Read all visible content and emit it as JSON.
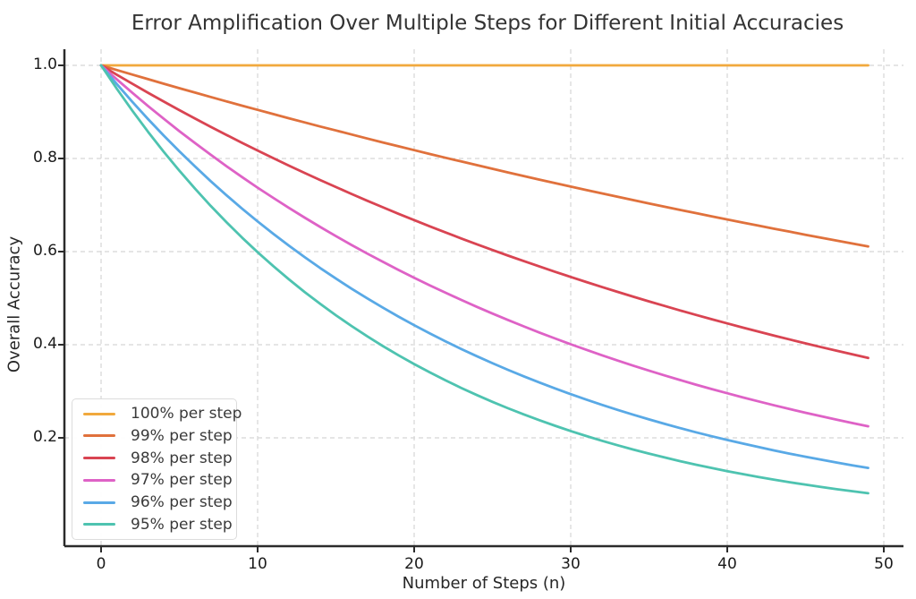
{
  "chart_data": {
    "type": "line",
    "title": "Error Amplification Over Multiple Steps for Different Initial Accuracies",
    "xlabel": "Number of Steps (n)",
    "ylabel": "Overall Accuracy",
    "xlim": [
      -2.34,
      51.26
    ],
    "ylim": [
      -0.033,
      1.035
    ],
    "grid": "dashed",
    "legend_position": "lower-left",
    "x_ticks": [
      0,
      10,
      20,
      30,
      40,
      50
    ],
    "x_tick_labels": [
      "0",
      "10",
      "20",
      "30",
      "40",
      "50"
    ],
    "y_ticks": [
      0.2,
      0.4,
      0.6,
      0.8,
      1.0
    ],
    "y_tick_labels": [
      "0.2",
      "0.4",
      "0.6",
      "0.8",
      "1.0"
    ],
    "x": [
      0,
      1,
      2,
      3,
      4,
      5,
      6,
      7,
      8,
      9,
      10,
      11,
      12,
      13,
      14,
      15,
      16,
      17,
      18,
      19,
      20,
      21,
      22,
      23,
      24,
      25,
      26,
      27,
      28,
      29,
      30,
      31,
      32,
      33,
      34,
      35,
      36,
      37,
      38,
      39,
      40,
      41,
      42,
      43,
      44,
      45,
      46,
      47,
      48,
      49
    ],
    "series": [
      {
        "name": "100% per step",
        "accuracy_per_step": 1.0,
        "color": "#F1A93D",
        "values": [
          1.0,
          1.0,
          1.0,
          1.0,
          1.0,
          1.0,
          1.0,
          1.0,
          1.0,
          1.0,
          1.0,
          1.0,
          1.0,
          1.0,
          1.0,
          1.0,
          1.0,
          1.0,
          1.0,
          1.0,
          1.0,
          1.0,
          1.0,
          1.0,
          1.0,
          1.0,
          1.0,
          1.0,
          1.0,
          1.0,
          1.0,
          1.0,
          1.0,
          1.0,
          1.0,
          1.0,
          1.0,
          1.0,
          1.0,
          1.0,
          1.0,
          1.0,
          1.0,
          1.0,
          1.0,
          1.0,
          1.0,
          1.0,
          1.0,
          1.0
        ]
      },
      {
        "name": "99% per step",
        "accuracy_per_step": 0.99,
        "color": "#E0713C",
        "values": [
          1.0,
          0.99,
          0.9801,
          0.9703,
          0.9606,
          0.951,
          0.9415,
          0.9321,
          0.9227,
          0.9135,
          0.9044,
          0.8953,
          0.8864,
          0.8775,
          0.8687,
          0.8601,
          0.8515,
          0.8429,
          0.8345,
          0.8262,
          0.8179,
          0.8097,
          0.8016,
          0.7936,
          0.7857,
          0.7778,
          0.77,
          0.7623,
          0.7547,
          0.7472,
          0.7397,
          0.7323,
          0.725,
          0.7177,
          0.7106,
          0.7034,
          0.6964,
          0.6894,
          0.6826,
          0.6757,
          0.669,
          0.6623,
          0.6557,
          0.6491,
          0.6426,
          0.6362,
          0.6298,
          0.6235,
          0.6173,
          0.6111
        ]
      },
      {
        "name": "98% per step",
        "accuracy_per_step": 0.98,
        "color": "#D94452",
        "values": [
          1.0,
          0.98,
          0.9604,
          0.9412,
          0.9224,
          0.9039,
          0.8858,
          0.8681,
          0.8508,
          0.8337,
          0.8171,
          0.8007,
          0.7847,
          0.769,
          0.7536,
          0.7386,
          0.7238,
          0.7093,
          0.6951,
          0.6812,
          0.6676,
          0.6543,
          0.6412,
          0.6283,
          0.6158,
          0.6035,
          0.5914,
          0.5796,
          0.568,
          0.5566,
          0.5455,
          0.5346,
          0.5239,
          0.5134,
          0.5031,
          0.4931,
          0.4832,
          0.4735,
          0.4641,
          0.4548,
          0.4457,
          0.4368,
          0.4281,
          0.4195,
          0.4111,
          0.4029,
          0.3948,
          0.3869,
          0.3792,
          0.3716
        ]
      },
      {
        "name": "97% per step",
        "accuracy_per_step": 0.97,
        "color": "#DE62C6",
        "values": [
          1.0,
          0.97,
          0.9409,
          0.9127,
          0.8853,
          0.8587,
          0.833,
          0.808,
          0.7837,
          0.7602,
          0.7374,
          0.7153,
          0.6938,
          0.673,
          0.6528,
          0.6333,
          0.6143,
          0.5958,
          0.578,
          0.5606,
          0.5438,
          0.5275,
          0.5117,
          0.4963,
          0.4814,
          0.467,
          0.453,
          0.4394,
          0.4262,
          0.4134,
          0.401,
          0.389,
          0.3773,
          0.366,
          0.355,
          0.3444,
          0.334,
          0.324,
          0.3143,
          0.3049,
          0.2957,
          0.2868,
          0.2782,
          0.2699,
          0.2618,
          0.2539,
          0.2463,
          0.2389,
          0.2317,
          0.2248
        ]
      },
      {
        "name": "96% per step",
        "accuracy_per_step": 0.96,
        "color": "#59A9E6",
        "values": [
          1.0,
          0.96,
          0.9216,
          0.8847,
          0.8493,
          0.8154,
          0.7828,
          0.7514,
          0.7214,
          0.6925,
          0.6648,
          0.6382,
          0.6127,
          0.5882,
          0.5647,
          0.5421,
          0.5204,
          0.4996,
          0.4796,
          0.4604,
          0.442,
          0.4243,
          0.4073,
          0.391,
          0.3754,
          0.3604,
          0.346,
          0.3321,
          0.3188,
          0.3061,
          0.2939,
          0.2821,
          0.2708,
          0.26,
          0.2496,
          0.2396,
          0.23,
          0.2208,
          0.212,
          0.2035,
          0.1954,
          0.1876,
          0.1801,
          0.1729,
          0.166,
          0.1594,
          0.153,
          0.1469,
          0.141,
          0.1353
        ]
      },
      {
        "name": "95% per step",
        "accuracy_per_step": 0.95,
        "color": "#4EC3B0",
        "values": [
          1.0,
          0.95,
          0.9025,
          0.8574,
          0.8145,
          0.7738,
          0.7351,
          0.6983,
          0.6634,
          0.6302,
          0.5987,
          0.5688,
          0.5404,
          0.5133,
          0.4877,
          0.4633,
          0.4401,
          0.4181,
          0.3972,
          0.3774,
          0.3585,
          0.3406,
          0.3235,
          0.3074,
          0.292,
          0.2774,
          0.2635,
          0.2503,
          0.2378,
          0.2259,
          0.2146,
          0.2039,
          0.1937,
          0.184,
          0.1748,
          0.1661,
          0.1578,
          0.1499,
          0.1424,
          0.1353,
          0.1285,
          0.1221,
          0.116,
          0.1102,
          0.1047,
          0.0994,
          0.0945,
          0.0897,
          0.0853,
          0.081
        ]
      }
    ]
  }
}
